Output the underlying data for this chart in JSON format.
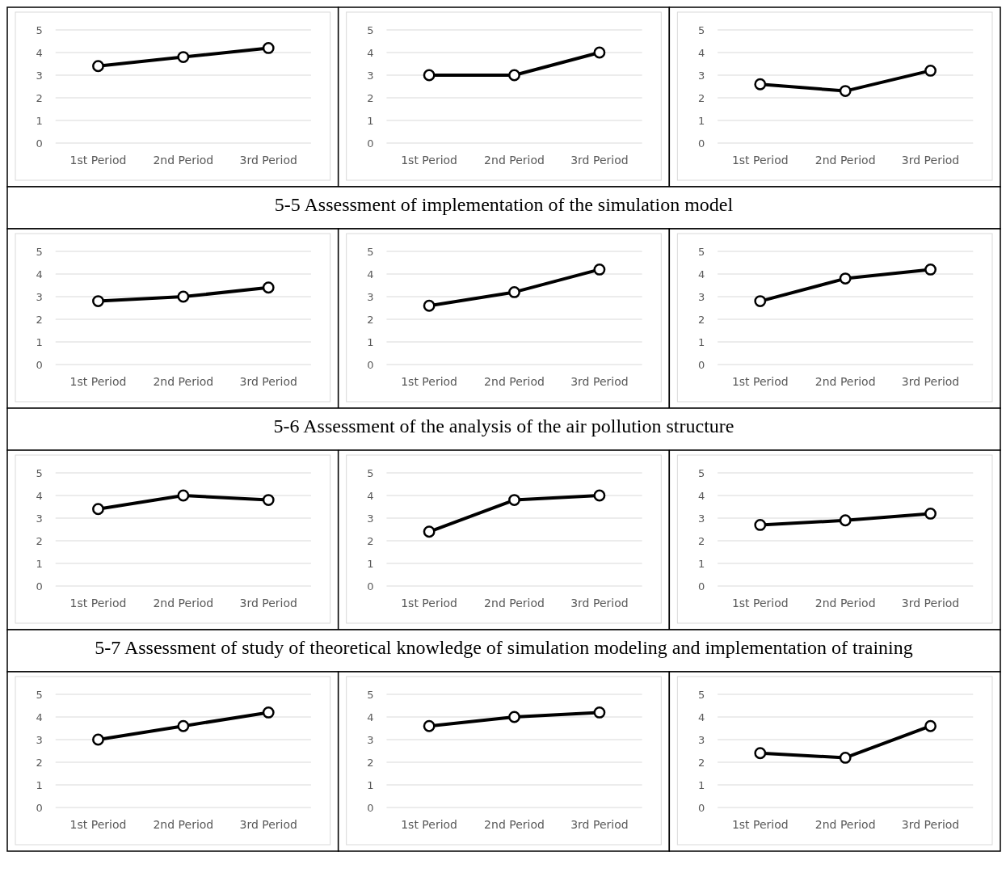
{
  "chart_data": [
    {
      "type": "line",
      "categories": [
        "1st Period",
        "2nd Period",
        "3rd Period"
      ],
      "values": [
        3.4,
        3.8,
        4.2
      ],
      "color": "#000000",
      "ylim": [
        0,
        5
      ],
      "yticks": [
        0,
        1,
        2,
        3,
        4,
        5
      ],
      "grid": "y",
      "marker": "circle"
    },
    {
      "type": "line",
      "categories": [
        "1st Period",
        "2nd Period",
        "3rd Period"
      ],
      "values": [
        3,
        3,
        4
      ],
      "color": "#000000",
      "ylim": [
        0,
        5
      ],
      "yticks": [
        0,
        1,
        2,
        3,
        4,
        5
      ],
      "grid": "y",
      "marker": "circle"
    },
    {
      "type": "line",
      "categories": [
        "1st Period",
        "2nd Period",
        "3rd Period"
      ],
      "values": [
        2.6,
        2.3,
        3.2
      ],
      "color": "#000000",
      "ylim": [
        0,
        5
      ],
      "yticks": [
        0,
        1,
        2,
        3,
        4,
        5
      ],
      "grid": "y",
      "marker": "circle"
    },
    {
      "type": "other",
      "title": "5-5 Assessment of implementation of the simulation model"
    },
    {
      "type": "line",
      "categories": [
        "1st Period",
        "2nd Period",
        "3rd Period"
      ],
      "values": [
        2.8,
        3,
        3.4
      ],
      "color": "#000000",
      "ylim": [
        0,
        5
      ],
      "yticks": [
        0,
        1,
        2,
        3,
        4,
        5
      ],
      "grid": "y",
      "marker": "circle"
    },
    {
      "type": "line",
      "categories": [
        "1st Period",
        "2nd Period",
        "3rd Period"
      ],
      "values": [
        2.6,
        3.2,
        4.2
      ],
      "color": "#000000",
      "ylim": [
        0,
        5
      ],
      "yticks": [
        0,
        1,
        2,
        3,
        4,
        5
      ],
      "grid": "y",
      "marker": "circle"
    },
    {
      "type": "line",
      "categories": [
        "1st Period",
        "2nd Period",
        "3rd Period"
      ],
      "values": [
        2.8,
        3.8,
        4.2
      ],
      "color": "#000000",
      "ylim": [
        0,
        5
      ],
      "yticks": [
        0,
        1,
        2,
        3,
        4,
        5
      ],
      "grid": "y",
      "marker": "circle"
    },
    {
      "type": "other",
      "title": "5-6 Assessment of the analysis of the air pollution structure"
    },
    {
      "type": "line",
      "categories": [
        "1st Period",
        "2nd Period",
        "3rd Period"
      ],
      "values": [
        3.4,
        4,
        3.8
      ],
      "color": "#000000",
      "ylim": [
        0,
        5
      ],
      "yticks": [
        0,
        1,
        2,
        3,
        4,
        5
      ],
      "grid": "y",
      "marker": "circle"
    },
    {
      "type": "line",
      "categories": [
        "1st Period",
        "2nd Period",
        "3rd Period"
      ],
      "values": [
        2.4,
        3.8,
        4
      ],
      "color": "#000000",
      "ylim": [
        0,
        5
      ],
      "yticks": [
        0,
        1,
        2,
        3,
        4,
        5
      ],
      "grid": "y",
      "marker": "circle"
    },
    {
      "type": "line",
      "categories": [
        "1st Period",
        "2nd Period",
        "3rd Period"
      ],
      "values": [
        2.7,
        2.9,
        3.2
      ],
      "color": "#000000",
      "ylim": [
        0,
        5
      ],
      "yticks": [
        0,
        1,
        2,
        3,
        4,
        5
      ],
      "grid": "y",
      "marker": "circle"
    },
    {
      "type": "other",
      "title": "5-7 Assessment of study of theoretical knowledge of simulation modeling and implementation of training"
    },
    {
      "type": "line",
      "categories": [
        "1st Period",
        "2nd Period",
        "3rd Period"
      ],
      "values": [
        3,
        3.6,
        4.2
      ],
      "color": "#000000",
      "ylim": [
        0,
        5
      ],
      "yticks": [
        0,
        1,
        2,
        3,
        4,
        5
      ],
      "grid": "y",
      "marker": "circle"
    },
    {
      "type": "line",
      "categories": [
        "1st Period",
        "2nd Period",
        "3rd Period"
      ],
      "values": [
        3.6,
        4,
        4.2
      ],
      "color": "#000000",
      "ylim": [
        0,
        5
      ],
      "yticks": [
        0,
        1,
        2,
        3,
        4,
        5
      ],
      "grid": "y",
      "marker": "circle"
    },
    {
      "type": "line",
      "categories": [
        "1st Period",
        "2nd Period",
        "3rd Period"
      ],
      "values": [
        2.4,
        2.2,
        3.6
      ],
      "color": "#000000",
      "ylim": [
        0,
        5
      ],
      "yticks": [
        0,
        1,
        2,
        3,
        4,
        5
      ],
      "grid": "y",
      "marker": "circle"
    }
  ]
}
